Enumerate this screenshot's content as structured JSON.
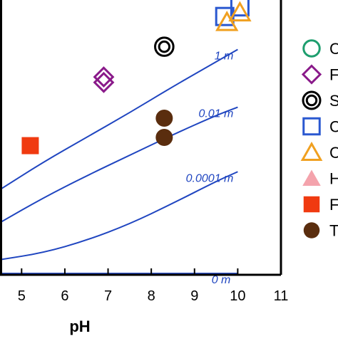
{
  "chart_data": {
    "type": "scatter",
    "xlabel": "pH",
    "ylabel": "",
    "xlim": [
      4.5,
      11
    ],
    "ylim": [
      0,
      10
    ],
    "x_ticks": [
      "5",
      "6",
      "7",
      "8",
      "9",
      "10",
      "11"
    ],
    "grid": false,
    "legend_position": "right",
    "colors": {
      "axis": "#000000",
      "curves": "#1f45c0",
      "green": "#1e9e6e",
      "purple": "#8a1a8a",
      "black": "#000000",
      "blue": "#2a58d0",
      "orange": "#f0a020",
      "pink": "#f4a3ac",
      "red": "#f03a10",
      "brown": "#5a2d0e"
    },
    "legend": [
      {
        "label": "C",
        "marker": "circle-open",
        "color": "#1e9e6e"
      },
      {
        "label": "F",
        "marker": "diamond-open",
        "color": "#8a1a8a"
      },
      {
        "label": "S",
        "marker": "double-circle-open",
        "color": "#000000"
      },
      {
        "label": "C",
        "marker": "square-open",
        "color": "#2a58d0"
      },
      {
        "label": "C",
        "marker": "triangle-open",
        "color": "#f0a020"
      },
      {
        "label": "H",
        "marker": "triangle-filled",
        "color": "#f4a3ac"
      },
      {
        "label": "F",
        "marker": "square-filled",
        "color": "#f03a10"
      },
      {
        "label": "T",
        "marker": "circle-filled",
        "color": "#5a2d0e"
      }
    ],
    "curves": [
      {
        "label": "1 m",
        "points": [
          [
            4.5,
            3.1
          ],
          [
            5.5,
            4.1
          ],
          [
            6.5,
            5.0
          ],
          [
            7.5,
            5.9
          ],
          [
            8.5,
            6.85
          ],
          [
            9.5,
            7.75
          ],
          [
            10.0,
            8.2
          ]
        ]
      },
      {
        "label": "0.01 m",
        "points": [
          [
            4.5,
            1.9
          ],
          [
            5.5,
            2.8
          ],
          [
            6.5,
            3.6
          ],
          [
            7.5,
            4.35
          ],
          [
            8.5,
            5.1
          ],
          [
            9.5,
            5.8
          ],
          [
            10.0,
            6.1
          ]
        ]
      },
      {
        "label": "0.0001 m",
        "points": [
          [
            4.5,
            0.55
          ],
          [
            5.5,
            0.8
          ],
          [
            6.5,
            1.25
          ],
          [
            7.5,
            1.85
          ],
          [
            8.5,
            2.6
          ],
          [
            9.5,
            3.4
          ],
          [
            10.0,
            3.75
          ]
        ]
      },
      {
        "label": "0 m",
        "points": [
          [
            4.5,
            0.05
          ],
          [
            5.5,
            0.05
          ],
          [
            6.5,
            0.05
          ],
          [
            7.5,
            0.05
          ],
          [
            8.5,
            0.05
          ],
          [
            9.5,
            0.05
          ],
          [
            10.0,
            0.05
          ]
        ]
      }
    ],
    "series": [
      {
        "marker": "diamond-open",
        "color": "#8a1a8a",
        "points": [
          [
            6.9,
            7.2
          ],
          [
            6.9,
            7.0
          ]
        ]
      },
      {
        "marker": "double-circle-open",
        "color": "#000000",
        "points": [
          [
            8.3,
            8.3
          ]
        ]
      },
      {
        "marker": "square-open",
        "color": "#2a58d0",
        "points": [
          [
            9.7,
            9.4
          ],
          [
            10.05,
            9.75
          ]
        ]
      },
      {
        "marker": "triangle-open",
        "color": "#f0a020",
        "points": [
          [
            9.75,
            9.2
          ],
          [
            10.05,
            9.55
          ]
        ]
      },
      {
        "marker": "square-filled",
        "color": "#f03a10",
        "points": [
          [
            5.2,
            4.7
          ]
        ]
      },
      {
        "marker": "circle-filled",
        "color": "#5a2d0e",
        "points": [
          [
            8.3,
            5.7
          ],
          [
            8.3,
            5.0
          ]
        ]
      }
    ]
  }
}
